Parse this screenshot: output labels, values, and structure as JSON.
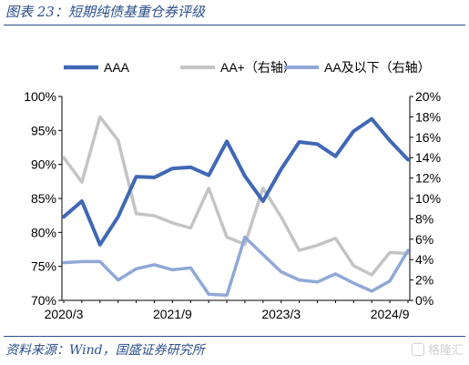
{
  "title": "图表 23：短期纯债基重仓券评级",
  "source": "资料来源：Wind，国盛证券研究所",
  "watermark": "格隆汇",
  "chart_data": {
    "type": "line",
    "title": "图表 23：短期纯债基重仓券评级",
    "xlabel": "",
    "ylabel": "",
    "x_tick_labels": [
      "2020/3",
      "2021/9",
      "2023/3",
      "2024/9"
    ],
    "x": [
      "2020/3",
      "2020/6",
      "2020/9",
      "2020/12",
      "2021/3",
      "2021/6",
      "2021/9",
      "2021/12",
      "2022/3",
      "2022/6",
      "2022/9",
      "2022/12",
      "2023/3",
      "2023/6",
      "2023/9",
      "2023/12",
      "2024/3",
      "2024/6",
      "2024/9",
      "2024/12"
    ],
    "left_axis": {
      "ylim": [
        70,
        100
      ],
      "ticks": [
        "70%",
        "75%",
        "80%",
        "85%",
        "90%",
        "95%",
        "100%"
      ]
    },
    "right_axis": {
      "ylim": [
        0,
        20
      ],
      "ticks": [
        "0%",
        "2%",
        "4%",
        "6%",
        "8%",
        "10%",
        "12%",
        "14%",
        "16%",
        "18%",
        "20%"
      ]
    },
    "grid": false,
    "legend_position": "top",
    "series": [
      {
        "name": "AAA",
        "axis": "left",
        "color": "#3f68b5",
        "width": 4,
        "values": [
          82.3,
          84.6,
          78.2,
          82.3,
          88.2,
          88.1,
          89.4,
          89.6,
          88.4,
          93.4,
          88.3,
          84.6,
          89.3,
          93.3,
          93.0,
          91.2,
          94.9,
          96.7,
          93.5,
          90.7
        ]
      },
      {
        "name": "AA+（右轴）",
        "axis": "right",
        "color": "#c4c4c4",
        "width": 3.5,
        "values": [
          14.0,
          11.6,
          18.0,
          15.7,
          8.5,
          8.3,
          7.6,
          7.1,
          11.0,
          6.2,
          5.5,
          11.0,
          8.2,
          4.9,
          5.4,
          6.1,
          3.4,
          2.5,
          4.7,
          4.6
        ]
      },
      {
        "name": "AA及以下（右轴）",
        "axis": "right",
        "color": "#8fa8d8",
        "width": 3.5,
        "values": [
          3.7,
          3.8,
          3.8,
          2.0,
          3.1,
          3.5,
          3.0,
          3.2,
          0.6,
          0.5,
          6.2,
          4.5,
          2.8,
          2.0,
          1.8,
          2.6,
          1.7,
          0.9,
          1.9,
          4.9
        ]
      }
    ]
  }
}
